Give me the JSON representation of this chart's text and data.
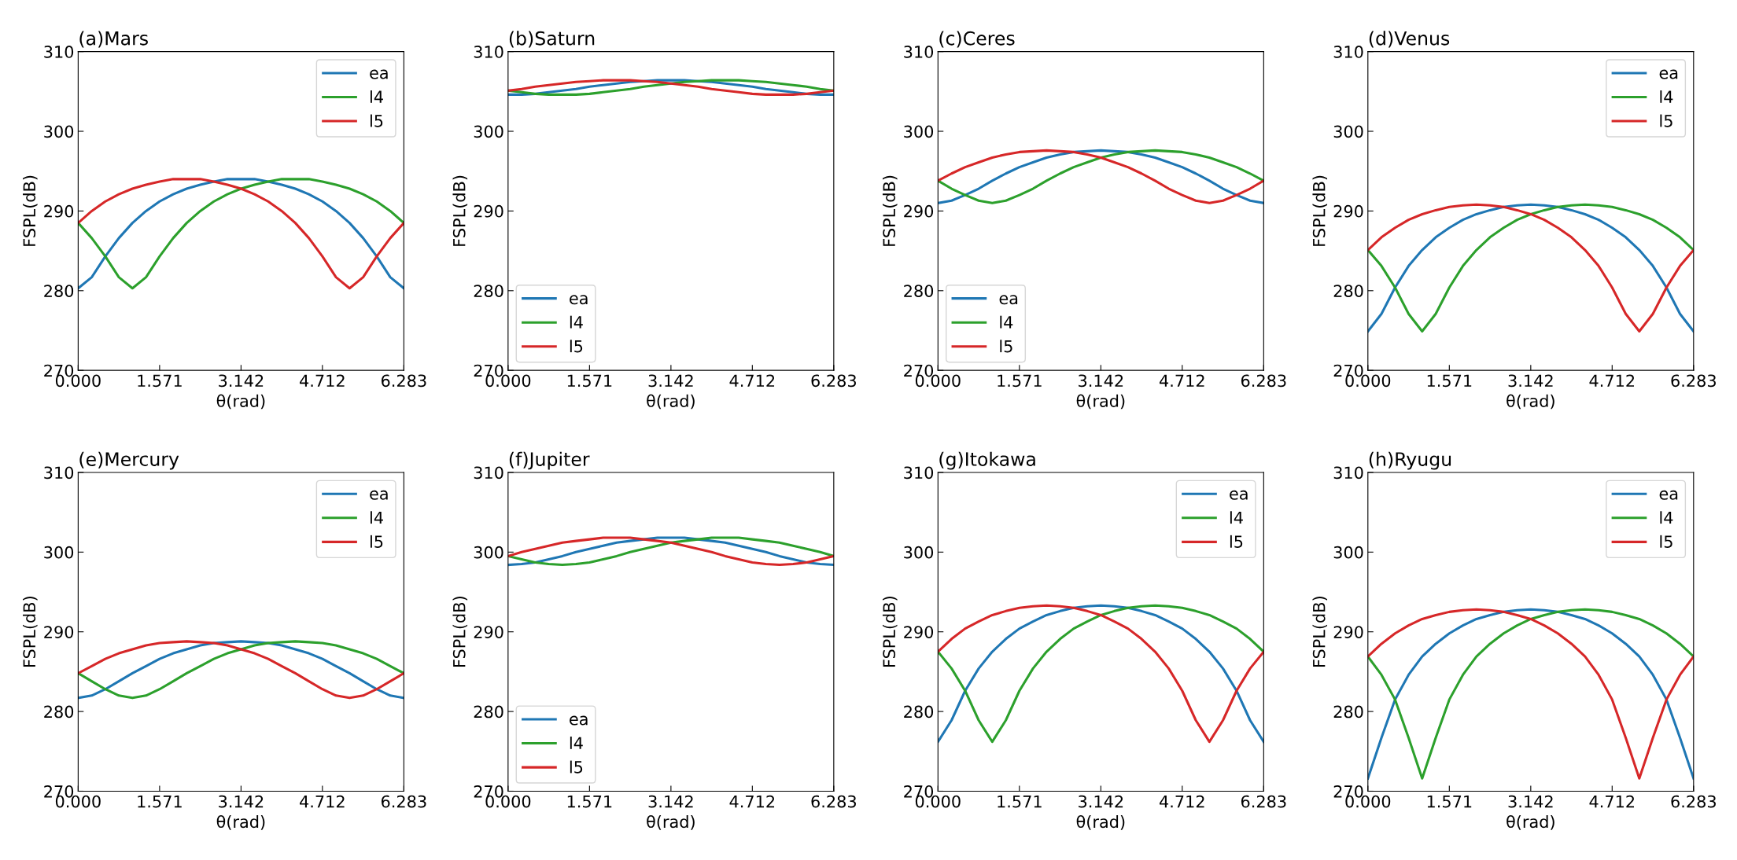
{
  "chart_data": [
    {
      "type": "line",
      "title": "(a)Mars",
      "xlabel": "θ(rad)",
      "ylabel": "FSPL(dB)",
      "legend": "top right",
      "grid": false,
      "xlim": [
        0,
        6.283
      ],
      "ylim": [
        270,
        310
      ],
      "yticks": [
        270,
        280,
        290,
        300,
        310
      ],
      "xticks": [
        {
          "value": 0,
          "label": "0.000"
        },
        {
          "value": 1.571,
          "label": "1.571"
        },
        {
          "value": 3.142,
          "label": "3.142"
        },
        {
          "value": 4.712,
          "label": "4.712"
        },
        {
          "value": 6.283,
          "label": "6.283"
        }
      ],
      "x": [
        0,
        0.262,
        0.524,
        0.785,
        1.047,
        1.309,
        1.571,
        1.833,
        2.094,
        2.356,
        2.618,
        2.88,
        3.142,
        3.403,
        3.665,
        3.927,
        4.189,
        4.451,
        4.712,
        4.974,
        5.236,
        5.498,
        5.76,
        6.021,
        6.283
      ],
      "series": [
        {
          "name": "ea",
          "color": "#1f77b4",
          "values": [
            280.3,
            281.7,
            284.3,
            286.6,
            288.5,
            290.0,
            291.2,
            292.1,
            292.8,
            293.3,
            293.7,
            294.0,
            294.0,
            294.0,
            293.7,
            293.3,
            292.8,
            292.1,
            291.2,
            290.0,
            288.5,
            286.6,
            284.3,
            281.7,
            280.3
          ]
        },
        {
          "name": "l4",
          "color": "#2ca02c",
          "values": [
            288.5,
            286.6,
            284.3,
            281.7,
            280.3,
            281.7,
            284.3,
            286.6,
            288.5,
            290.0,
            291.2,
            292.1,
            292.8,
            293.3,
            293.7,
            294.0,
            294.0,
            294.0,
            293.7,
            293.3,
            292.8,
            292.1,
            291.2,
            290.0,
            288.5
          ]
        },
        {
          "name": "l5",
          "color": "#d62728",
          "values": [
            288.5,
            290.0,
            291.2,
            292.1,
            292.8,
            293.3,
            293.7,
            294.0,
            294.0,
            294.0,
            293.7,
            293.3,
            292.8,
            292.1,
            291.2,
            290.0,
            288.5,
            286.6,
            284.3,
            281.7,
            280.3,
            281.7,
            284.3,
            286.6,
            288.5
          ]
        }
      ]
    },
    {
      "type": "line",
      "title": "(b)Saturn",
      "xlabel": "θ(rad)",
      "ylabel": "FSPL(dB)",
      "legend": "bottom left",
      "grid": false,
      "xlim": [
        0,
        6.283
      ],
      "ylim": [
        270,
        310
      ],
      "yticks": [
        270,
        280,
        290,
        300,
        310
      ],
      "xticks": [
        {
          "value": 0,
          "label": "0.000"
        },
        {
          "value": 1.571,
          "label": "1.571"
        },
        {
          "value": 3.142,
          "label": "3.142"
        },
        {
          "value": 4.712,
          "label": "4.712"
        },
        {
          "value": 6.283,
          "label": "6.283"
        }
      ],
      "x": [
        0,
        0.262,
        0.524,
        0.785,
        1.047,
        1.309,
        1.571,
        1.833,
        2.094,
        2.356,
        2.618,
        2.88,
        3.142,
        3.403,
        3.665,
        3.927,
        4.189,
        4.451,
        4.712,
        4.974,
        5.236,
        5.498,
        5.76,
        6.021,
        6.283
      ],
      "series": [
        {
          "name": "ea",
          "color": "#1f77b4",
          "values": [
            304.6,
            304.6,
            304.7,
            304.9,
            305.1,
            305.3,
            305.6,
            305.8,
            306.0,
            306.2,
            306.3,
            306.4,
            306.4,
            306.4,
            306.3,
            306.2,
            306.0,
            305.8,
            305.6,
            305.3,
            305.1,
            304.9,
            304.7,
            304.6,
            304.6
          ]
        },
        {
          "name": "l4",
          "color": "#2ca02c",
          "values": [
            305.1,
            304.9,
            304.7,
            304.6,
            304.6,
            304.6,
            304.7,
            304.9,
            305.1,
            305.3,
            305.6,
            305.8,
            306.0,
            306.2,
            306.3,
            306.4,
            306.4,
            306.4,
            306.3,
            306.2,
            306.0,
            305.8,
            305.6,
            305.3,
            305.1
          ]
        },
        {
          "name": "l5",
          "color": "#d62728",
          "values": [
            305.1,
            305.3,
            305.6,
            305.8,
            306.0,
            306.2,
            306.3,
            306.4,
            306.4,
            306.4,
            306.3,
            306.2,
            306.0,
            305.8,
            305.6,
            305.3,
            305.1,
            304.9,
            304.7,
            304.6,
            304.6,
            304.6,
            304.7,
            304.9,
            305.1
          ]
        }
      ]
    },
    {
      "type": "line",
      "title": "(c)Ceres",
      "xlabel": "θ(rad)",
      "ylabel": "FSPL(dB)",
      "legend": "bottom left",
      "grid": false,
      "xlim": [
        0,
        6.283
      ],
      "ylim": [
        270,
        310
      ],
      "yticks": [
        270,
        280,
        290,
        300,
        310
      ],
      "xticks": [
        {
          "value": 0,
          "label": "0.000"
        },
        {
          "value": 1.571,
          "label": "1.571"
        },
        {
          "value": 3.142,
          "label": "3.142"
        },
        {
          "value": 4.712,
          "label": "4.712"
        },
        {
          "value": 6.283,
          "label": "6.283"
        }
      ],
      "x": [
        0,
        0.262,
        0.524,
        0.785,
        1.047,
        1.309,
        1.571,
        1.833,
        2.094,
        2.356,
        2.618,
        2.88,
        3.142,
        3.403,
        3.665,
        3.927,
        4.189,
        4.451,
        4.712,
        4.974,
        5.236,
        5.498,
        5.76,
        6.021,
        6.283
      ],
      "series": [
        {
          "name": "ea",
          "color": "#1f77b4",
          "values": [
            291.0,
            291.3,
            292.0,
            292.8,
            293.8,
            294.7,
            295.5,
            296.1,
            296.7,
            297.1,
            297.4,
            297.5,
            297.6,
            297.5,
            297.4,
            297.1,
            296.7,
            296.1,
            295.5,
            294.7,
            293.8,
            292.8,
            292.0,
            291.3,
            291.0
          ]
        },
        {
          "name": "l4",
          "color": "#2ca02c",
          "values": [
            293.8,
            292.8,
            292.0,
            291.3,
            291.0,
            291.3,
            292.0,
            292.8,
            293.8,
            294.7,
            295.5,
            296.1,
            296.7,
            297.1,
            297.4,
            297.5,
            297.6,
            297.5,
            297.4,
            297.1,
            296.7,
            296.1,
            295.5,
            294.7,
            293.8
          ]
        },
        {
          "name": "l5",
          "color": "#d62728",
          "values": [
            293.8,
            294.7,
            295.5,
            296.1,
            296.7,
            297.1,
            297.4,
            297.5,
            297.6,
            297.5,
            297.4,
            297.1,
            296.7,
            296.1,
            295.5,
            294.7,
            293.8,
            292.8,
            292.0,
            291.3,
            291.0,
            291.3,
            292.0,
            292.8,
            293.8
          ]
        }
      ]
    },
    {
      "type": "line",
      "title": "(d)Venus",
      "xlabel": "θ(rad)",
      "ylabel": "FSPL(dB)",
      "legend": "top right",
      "grid": false,
      "xlim": [
        0,
        6.283
      ],
      "ylim": [
        270,
        310
      ],
      "yticks": [
        270,
        280,
        290,
        300,
        310
      ],
      "xticks": [
        {
          "value": 0,
          "label": "0.000"
        },
        {
          "value": 1.571,
          "label": "1.571"
        },
        {
          "value": 3.142,
          "label": "3.142"
        },
        {
          "value": 4.712,
          "label": "4.712"
        },
        {
          "value": 6.283,
          "label": "6.283"
        }
      ],
      "x": [
        0,
        0.262,
        0.524,
        0.785,
        1.047,
        1.309,
        1.571,
        1.833,
        2.094,
        2.356,
        2.618,
        2.88,
        3.142,
        3.403,
        3.665,
        3.927,
        4.189,
        4.451,
        4.712,
        4.974,
        5.236,
        5.498,
        5.76,
        6.021,
        6.283
      ],
      "series": [
        {
          "name": "ea",
          "color": "#1f77b4",
          "values": [
            274.9,
            277.1,
            280.4,
            283.1,
            285.1,
            286.7,
            287.9,
            288.9,
            289.6,
            290.1,
            290.5,
            290.7,
            290.8,
            290.7,
            290.5,
            290.1,
            289.6,
            288.9,
            287.9,
            286.7,
            285.1,
            283.1,
            280.4,
            277.1,
            274.9
          ]
        },
        {
          "name": "l4",
          "color": "#2ca02c",
          "values": [
            285.1,
            283.1,
            280.4,
            277.1,
            274.9,
            277.1,
            280.4,
            283.1,
            285.1,
            286.7,
            287.9,
            288.9,
            289.6,
            290.1,
            290.5,
            290.7,
            290.8,
            290.7,
            290.5,
            290.1,
            289.6,
            288.9,
            287.9,
            286.7,
            285.1
          ]
        },
        {
          "name": "l5",
          "color": "#d62728",
          "values": [
            285.1,
            286.7,
            287.9,
            288.9,
            289.6,
            290.1,
            290.5,
            290.7,
            290.8,
            290.7,
            290.5,
            290.1,
            289.6,
            288.9,
            287.9,
            286.7,
            285.1,
            283.1,
            280.4,
            277.1,
            274.9,
            277.1,
            280.4,
            283.1,
            285.1
          ]
        }
      ]
    },
    {
      "type": "line",
      "title": "(e)Mercury",
      "xlabel": "θ(rad)",
      "ylabel": "FSPL(dB)",
      "legend": "top right",
      "grid": false,
      "xlim": [
        0,
        6.283
      ],
      "ylim": [
        270,
        310
      ],
      "yticks": [
        270,
        280,
        290,
        300,
        310
      ],
      "xticks": [
        {
          "value": 0,
          "label": "0.000"
        },
        {
          "value": 1.571,
          "label": "1.571"
        },
        {
          "value": 3.142,
          "label": "3.142"
        },
        {
          "value": 4.712,
          "label": "4.712"
        },
        {
          "value": 6.283,
          "label": "6.283"
        }
      ],
      "x": [
        0,
        0.262,
        0.524,
        0.785,
        1.047,
        1.309,
        1.571,
        1.833,
        2.094,
        2.356,
        2.618,
        2.88,
        3.142,
        3.403,
        3.665,
        3.927,
        4.189,
        4.451,
        4.712,
        4.974,
        5.236,
        5.498,
        5.76,
        6.021,
        6.283
      ],
      "series": [
        {
          "name": "ea",
          "color": "#1f77b4",
          "values": [
            281.7,
            282.0,
            282.8,
            283.8,
            284.8,
            285.7,
            286.6,
            287.3,
            287.8,
            288.3,
            288.6,
            288.7,
            288.8,
            288.7,
            288.6,
            288.3,
            287.8,
            287.3,
            286.6,
            285.7,
            284.8,
            283.8,
            282.8,
            282.0,
            281.7
          ]
        },
        {
          "name": "l4",
          "color": "#2ca02c",
          "values": [
            284.8,
            283.8,
            282.8,
            282.0,
            281.7,
            282.0,
            282.8,
            283.8,
            284.8,
            285.7,
            286.6,
            287.3,
            287.8,
            288.3,
            288.6,
            288.7,
            288.8,
            288.7,
            288.6,
            288.3,
            287.8,
            287.3,
            286.6,
            285.7,
            284.8
          ]
        },
        {
          "name": "l5",
          "color": "#d62728",
          "values": [
            284.8,
            285.7,
            286.6,
            287.3,
            287.8,
            288.3,
            288.6,
            288.7,
            288.8,
            288.7,
            288.6,
            288.3,
            287.8,
            287.3,
            286.6,
            285.7,
            284.8,
            283.8,
            282.8,
            282.0,
            281.7,
            282.0,
            282.8,
            283.8,
            284.8
          ]
        }
      ]
    },
    {
      "type": "line",
      "title": "(f)Jupiter",
      "xlabel": "θ(rad)",
      "ylabel": "FSPL(dB)",
      "legend": "bottom left",
      "grid": false,
      "xlim": [
        0,
        6.283
      ],
      "ylim": [
        270,
        310
      ],
      "yticks": [
        270,
        280,
        290,
        300,
        310
      ],
      "xticks": [
        {
          "value": 0,
          "label": "0.000"
        },
        {
          "value": 1.571,
          "label": "1.571"
        },
        {
          "value": 3.142,
          "label": "3.142"
        },
        {
          "value": 4.712,
          "label": "4.712"
        },
        {
          "value": 6.283,
          "label": "6.283"
        }
      ],
      "x": [
        0,
        0.262,
        0.524,
        0.785,
        1.047,
        1.309,
        1.571,
        1.833,
        2.094,
        2.356,
        2.618,
        2.88,
        3.142,
        3.403,
        3.665,
        3.927,
        4.189,
        4.451,
        4.712,
        4.974,
        5.236,
        5.498,
        5.76,
        6.021,
        6.283
      ],
      "series": [
        {
          "name": "ea",
          "color": "#1f77b4",
          "values": [
            298.4,
            298.5,
            298.7,
            299.1,
            299.5,
            300.0,
            300.4,
            300.8,
            301.2,
            301.4,
            301.6,
            301.8,
            301.8,
            301.8,
            301.6,
            301.4,
            301.2,
            300.8,
            300.4,
            300.0,
            299.5,
            299.1,
            298.7,
            298.5,
            298.4
          ]
        },
        {
          "name": "l4",
          "color": "#2ca02c",
          "values": [
            299.5,
            299.1,
            298.7,
            298.5,
            298.4,
            298.5,
            298.7,
            299.1,
            299.5,
            300.0,
            300.4,
            300.8,
            301.2,
            301.4,
            301.6,
            301.8,
            301.8,
            301.8,
            301.6,
            301.4,
            301.2,
            300.8,
            300.4,
            300.0,
            299.5
          ]
        },
        {
          "name": "l5",
          "color": "#d62728",
          "values": [
            299.5,
            300.0,
            300.4,
            300.8,
            301.2,
            301.4,
            301.6,
            301.8,
            301.8,
            301.8,
            301.6,
            301.4,
            301.2,
            300.8,
            300.4,
            300.0,
            299.5,
            299.1,
            298.7,
            298.5,
            298.4,
            298.5,
            298.7,
            299.1,
            299.5
          ]
        }
      ]
    },
    {
      "type": "line",
      "title": "(g)Itokawa",
      "xlabel": "θ(rad)",
      "ylabel": "FSPL(dB)",
      "legend": "top right",
      "grid": false,
      "xlim": [
        0,
        6.283
      ],
      "ylim": [
        270,
        310
      ],
      "yticks": [
        270,
        280,
        290,
        300,
        310
      ],
      "xticks": [
        {
          "value": 0,
          "label": "0.000"
        },
        {
          "value": 1.571,
          "label": "1.571"
        },
        {
          "value": 3.142,
          "label": "3.142"
        },
        {
          "value": 4.712,
          "label": "4.712"
        },
        {
          "value": 6.283,
          "label": "6.283"
        }
      ],
      "x": [
        0,
        0.262,
        0.524,
        0.785,
        1.047,
        1.309,
        1.571,
        1.833,
        2.094,
        2.356,
        2.618,
        2.88,
        3.142,
        3.403,
        3.665,
        3.927,
        4.189,
        4.451,
        4.712,
        4.974,
        5.236,
        5.498,
        5.76,
        6.021,
        6.283
      ],
      "series": [
        {
          "name": "ea",
          "color": "#1f77b4",
          "values": [
            276.2,
            278.9,
            282.6,
            285.4,
            287.5,
            289.1,
            290.4,
            291.3,
            292.1,
            292.6,
            293.0,
            293.2,
            293.3,
            293.2,
            293.0,
            292.6,
            292.1,
            291.3,
            290.4,
            289.1,
            287.5,
            285.4,
            282.6,
            278.9,
            276.2
          ]
        },
        {
          "name": "l4",
          "color": "#2ca02c",
          "values": [
            287.5,
            285.4,
            282.6,
            278.9,
            276.2,
            278.9,
            282.6,
            285.4,
            287.5,
            289.1,
            290.4,
            291.3,
            292.1,
            292.6,
            293.0,
            293.2,
            293.3,
            293.2,
            293.0,
            292.6,
            292.1,
            291.3,
            290.4,
            289.1,
            287.5
          ]
        },
        {
          "name": "l5",
          "color": "#d62728",
          "values": [
            287.5,
            289.1,
            290.4,
            291.3,
            292.1,
            292.6,
            293.0,
            293.2,
            293.3,
            293.2,
            293.0,
            292.6,
            292.1,
            291.3,
            290.4,
            289.1,
            287.5,
            285.4,
            282.6,
            278.9,
            276.2,
            278.9,
            282.6,
            285.4,
            287.5
          ]
        }
      ]
    },
    {
      "type": "line",
      "title": "(h)Ryugu",
      "xlabel": "θ(rad)",
      "ylabel": "FSPL(dB)",
      "legend": "top right",
      "grid": false,
      "xlim": [
        0,
        6.283
      ],
      "ylim": [
        270,
        310
      ],
      "yticks": [
        270,
        280,
        290,
        300,
        310
      ],
      "xticks": [
        {
          "value": 0,
          "label": "0.000"
        },
        {
          "value": 1.571,
          "label": "1.571"
        },
        {
          "value": 3.142,
          "label": "3.142"
        },
        {
          "value": 4.712,
          "label": "4.712"
        },
        {
          "value": 6.283,
          "label": "6.283"
        }
      ],
      "x": [
        0,
        0.262,
        0.524,
        0.785,
        1.047,
        1.309,
        1.571,
        1.833,
        2.094,
        2.356,
        2.618,
        2.88,
        3.142,
        3.403,
        3.665,
        3.927,
        4.189,
        4.451,
        4.712,
        4.974,
        5.236,
        5.498,
        5.76,
        6.021,
        6.283
      ],
      "series": [
        {
          "name": "ea",
          "color": "#1f77b4",
          "values": [
            271.6,
            276.7,
            281.5,
            284.6,
            286.9,
            288.5,
            289.8,
            290.8,
            291.6,
            292.1,
            292.5,
            292.7,
            292.8,
            292.7,
            292.5,
            292.1,
            291.6,
            290.8,
            289.8,
            288.5,
            286.9,
            284.6,
            281.5,
            276.7,
            271.6
          ]
        },
        {
          "name": "l4",
          "color": "#2ca02c",
          "values": [
            286.9,
            284.6,
            281.5,
            276.7,
            271.6,
            276.7,
            281.5,
            284.6,
            286.9,
            288.5,
            289.8,
            290.8,
            291.6,
            292.1,
            292.5,
            292.7,
            292.8,
            292.7,
            292.5,
            292.1,
            291.6,
            290.8,
            289.8,
            288.5,
            286.9
          ]
        },
        {
          "name": "l5",
          "color": "#d62728",
          "values": [
            286.9,
            288.5,
            289.8,
            290.8,
            291.6,
            292.1,
            292.5,
            292.7,
            292.8,
            292.7,
            292.5,
            292.1,
            291.6,
            290.8,
            289.8,
            288.5,
            286.9,
            284.6,
            281.5,
            276.7,
            271.6,
            276.7,
            281.5,
            284.6,
            286.9
          ]
        }
      ]
    }
  ]
}
